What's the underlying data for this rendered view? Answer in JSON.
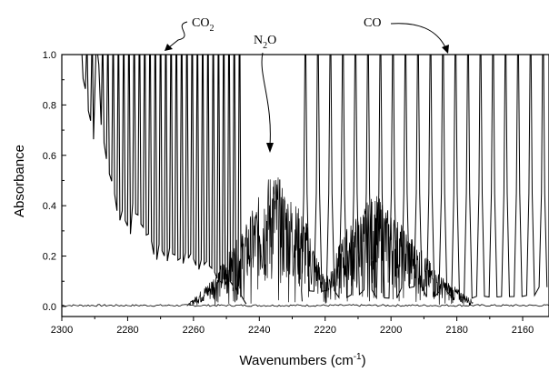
{
  "chart_data": {
    "type": "line",
    "title": "",
    "xlabel": "Wavenumbers (cm-1)",
    "xlabel_parts": {
      "base": "Wavenumbers (cm",
      "sup": "-1",
      "close": ")"
    },
    "ylabel": "Absorbance",
    "xlim": [
      2300,
      2152
    ],
    "x_reversed": true,
    "ylim": [
      -0.04,
      1.0
    ],
    "x_ticks": [
      2300,
      2280,
      2260,
      2240,
      2220,
      2200,
      2180,
      2160
    ],
    "y_ticks": [
      "0.0",
      "0.2",
      "0.4",
      "0.6",
      "0.8",
      "1.0"
    ],
    "y_tick_values": [
      0.0,
      0.2,
      0.4,
      0.6,
      0.8,
      1.0
    ],
    "grid": false,
    "legend": "none",
    "line_color": "#000000",
    "series": [
      {
        "id": "CO2",
        "label_base": "CO",
        "label_sub": "2",
        "band_range": [
          2294,
          2245
        ],
        "line_spacing": 1.6,
        "envelope": [
          [
            2294,
            0.85
          ],
          [
            2290,
            0.95
          ],
          [
            2285,
            0.6
          ],
          [
            2280,
            0.35
          ],
          [
            2270,
            0.25
          ],
          [
            2260,
            0.2
          ],
          [
            2250,
            0.12
          ],
          [
            2245,
            0.05
          ]
        ],
        "note": "saturated rotational lines reaching 1.0"
      },
      {
        "id": "N2O",
        "label_base": "N",
        "label_sub": "2",
        "label_tail": "O",
        "band_range": [
          2262,
          2175
        ],
        "envelope": [
          [
            2262,
            0.0
          ],
          [
            2255,
            0.1
          ],
          [
            2245,
            0.3
          ],
          [
            2236,
            0.55
          ],
          [
            2226,
            0.35
          ],
          [
            2220,
            0.1
          ],
          [
            2214,
            0.3
          ],
          [
            2205,
            0.45
          ],
          [
            2195,
            0.3
          ],
          [
            2185,
            0.12
          ],
          [
            2175,
            0.02
          ]
        ],
        "note": "dense rovibrational band, peak near 0.57"
      },
      {
        "id": "CO",
        "label": "CO",
        "band_range": [
          2226,
          2152
        ],
        "line_spacing": 3.8,
        "note": "widely spaced lines reaching 1.0"
      }
    ],
    "annotations": [
      {
        "target": "CO2",
        "text_base": "CO",
        "text_sub": "2"
      },
      {
        "target": "N2O",
        "text_base": "N",
        "text_sub": "2",
        "text_tail": "O"
      },
      {
        "target": "CO",
        "text": "CO"
      }
    ]
  }
}
